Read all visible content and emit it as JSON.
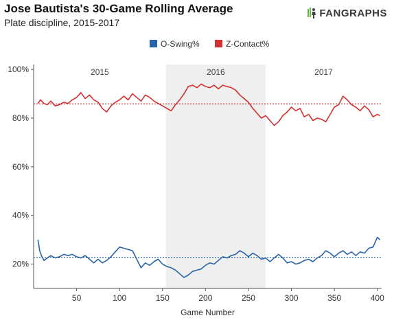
{
  "header": {
    "title": "Jose Bautista's 30-Game Rolling Average",
    "subtitle": "Plate discipline, 2015-2017",
    "logo_text": "FANGRAPHS"
  },
  "chart_data": {
    "type": "line",
    "title": "Jose Bautista's 30-Game Rolling Average",
    "subtitle": "Plate discipline, 2015-2017",
    "xlabel": "Game Number",
    "ylabel": "",
    "xlim": [
      0,
      405
    ],
    "ylim": [
      10,
      102
    ],
    "xticks": [
      50,
      100,
      150,
      200,
      250,
      300,
      350,
      400
    ],
    "yticks": [
      20,
      40,
      60,
      80,
      100
    ],
    "ytick_labels": [
      "20%",
      "40%",
      "60%",
      "80%",
      "100%"
    ],
    "grid": false,
    "legend_position": "top-center",
    "seasons": [
      {
        "label": "2015",
        "start": 0,
        "end": 154,
        "shaded": false
      },
      {
        "label": "2016",
        "start": 154,
        "end": 270,
        "shaded": true
      },
      {
        "label": "2017",
        "start": 270,
        "end": 405,
        "shaded": false
      }
    ],
    "series": [
      {
        "name": "O-Swing%",
        "color": "#2a64a8",
        "average": 22.6,
        "x": [
          5,
          7,
          9,
          12,
          16,
          20,
          25,
          30,
          35,
          40,
          45,
          50,
          55,
          60,
          65,
          70,
          75,
          80,
          85,
          90,
          95,
          100,
          105,
          110,
          115,
          120,
          125,
          130,
          135,
          140,
          145,
          150,
          155,
          160,
          165,
          170,
          175,
          180,
          185,
          190,
          195,
          200,
          205,
          210,
          215,
          220,
          225,
          230,
          235,
          240,
          245,
          250,
          255,
          260,
          265,
          270,
          275,
          280,
          285,
          290,
          295,
          300,
          305,
          310,
          315,
          320,
          325,
          330,
          335,
          340,
          345,
          350,
          355,
          360,
          365,
          370,
          375,
          380,
          385,
          390,
          395,
          400,
          403
        ],
        "values": [
          30.0,
          25.5,
          23.5,
          21.5,
          22.5,
          23.5,
          22.5,
          23.0,
          24.0,
          23.5,
          24.0,
          23.0,
          22.5,
          23.5,
          22.0,
          20.5,
          22.0,
          20.5,
          21.5,
          23.0,
          25.0,
          27.0,
          26.5,
          26.0,
          25.5,
          22.0,
          18.5,
          20.5,
          19.5,
          21.0,
          22.0,
          20.0,
          19.0,
          18.5,
          17.5,
          16.0,
          14.5,
          15.5,
          17.0,
          17.5,
          18.0,
          19.5,
          20.5,
          20.0,
          21.5,
          23.0,
          22.5,
          23.5,
          24.0,
          25.5,
          24.5,
          23.0,
          24.5,
          23.5,
          22.0,
          22.5,
          21.0,
          22.5,
          24.0,
          22.5,
          20.5,
          21.0,
          20.0,
          20.5,
          21.5,
          22.0,
          21.0,
          22.5,
          23.5,
          25.5,
          24.5,
          23.0,
          24.5,
          25.5,
          24.0,
          25.0,
          23.5,
          25.0,
          24.5,
          26.5,
          27.0,
          31.0,
          30.0
        ]
      },
      {
        "name": "Z-Contact%",
        "color": "#d32f2f",
        "average": 85.8,
        "x": [
          5,
          8,
          12,
          16,
          20,
          25,
          30,
          35,
          40,
          45,
          50,
          55,
          60,
          65,
          70,
          75,
          80,
          85,
          90,
          95,
          100,
          105,
          110,
          115,
          120,
          125,
          130,
          135,
          140,
          145,
          150,
          155,
          160,
          165,
          170,
          175,
          180,
          185,
          190,
          195,
          200,
          205,
          210,
          215,
          220,
          225,
          230,
          235,
          240,
          245,
          250,
          255,
          260,
          265,
          270,
          275,
          280,
          285,
          290,
          295,
          300,
          305,
          310,
          315,
          320,
          325,
          330,
          335,
          340,
          345,
          350,
          355,
          360,
          365,
          370,
          375,
          380,
          385,
          390,
          395,
          400,
          403
        ],
        "values": [
          86.0,
          87.5,
          86.0,
          85.5,
          87.0,
          85.0,
          85.5,
          86.5,
          86.0,
          87.5,
          88.5,
          90.5,
          88.0,
          89.5,
          87.5,
          86.5,
          84.0,
          82.5,
          85.0,
          86.5,
          87.5,
          89.0,
          87.5,
          90.0,
          88.5,
          87.0,
          89.5,
          88.5,
          87.0,
          86.0,
          85.0,
          84.0,
          83.0,
          85.5,
          87.5,
          90.0,
          93.0,
          93.5,
          92.5,
          94.0,
          93.0,
          92.5,
          93.5,
          92.0,
          93.5,
          93.0,
          92.5,
          91.5,
          89.5,
          88.0,
          86.5,
          84.0,
          82.0,
          80.0,
          81.0,
          79.0,
          77.0,
          78.5,
          81.0,
          82.5,
          84.5,
          83.0,
          84.0,
          80.5,
          81.5,
          79.0,
          80.0,
          79.5,
          78.5,
          81.5,
          84.5,
          85.5,
          89.0,
          87.5,
          85.5,
          84.5,
          83.0,
          85.0,
          83.5,
          80.5,
          81.5,
          81.0
        ]
      }
    ]
  }
}
